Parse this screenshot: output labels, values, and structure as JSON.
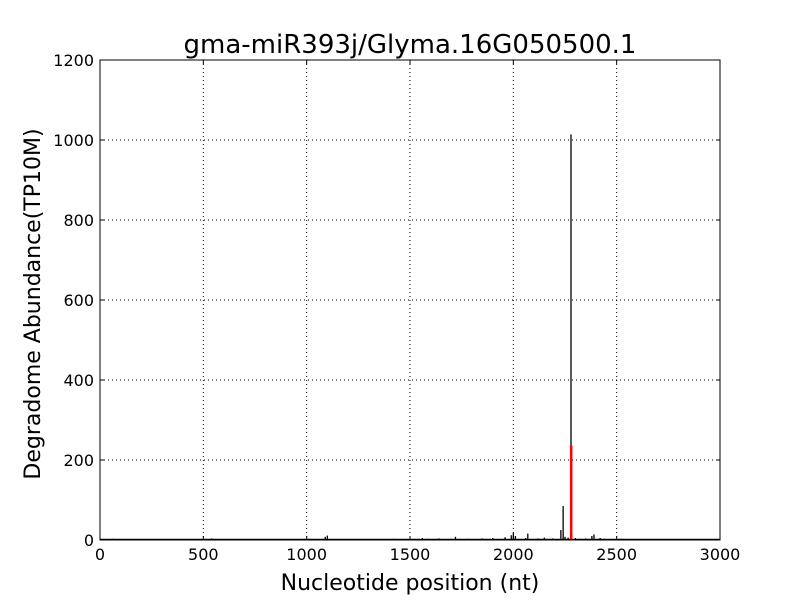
{
  "chart_data": {
    "type": "bar",
    "title": "gma-miR393j/Glyma.16G050500.1",
    "xlabel": "Nucleotide position (nt)",
    "ylabel": "Degradome Abundance(TP10M)",
    "xlim": [
      0,
      3000
    ],
    "ylim": [
      0,
      1200
    ],
    "xticks": [
      0,
      500,
      1000,
      1500,
      2000,
      2500,
      3000
    ],
    "yticks": [
      0,
      200,
      400,
      600,
      800,
      1000,
      1200
    ],
    "grid": true,
    "colors": {
      "abundance": "#000000",
      "target_site": "#ff0000"
    },
    "series": [
      {
        "x": [
          20,
          60,
          90,
          150,
          210,
          260,
          330,
          400,
          470,
          540,
          560,
          640,
          720,
          800,
          870,
          940,
          1010,
          1040,
          1090,
          1100,
          1160,
          1230,
          1300,
          1370,
          1420,
          1480,
          1560,
          1590,
          1640,
          1700,
          1720,
          1780,
          1850,
          1900,
          1960,
          1990,
          2000,
          2010,
          2060,
          2070,
          2120,
          2150,
          2190,
          2230,
          2241,
          2250,
          2265,
          2300,
          2320,
          2350,
          2380,
          2390,
          2420,
          2440,
          2480,
          2520,
          2550
        ],
        "y": [
          2,
          3,
          1,
          2,
          1,
          1,
          2,
          1,
          2,
          4,
          2,
          1,
          2,
          1,
          2,
          1,
          3,
          2,
          8,
          11,
          2,
          1,
          2,
          1,
          3,
          2,
          5,
          3,
          4,
          3,
          8,
          3,
          4,
          5,
          7,
          12,
          18,
          10,
          5,
          16,
          4,
          6,
          4,
          25,
          85,
          8,
          6,
          5,
          3,
          4,
          10,
          14,
          5,
          3,
          2,
          3,
          2
        ]
      },
      {
        "x": [
          2279
        ],
        "y": [
          1014
        ]
      }
    ],
    "target_site": {
      "x": 2280,
      "y": 236
    }
  }
}
